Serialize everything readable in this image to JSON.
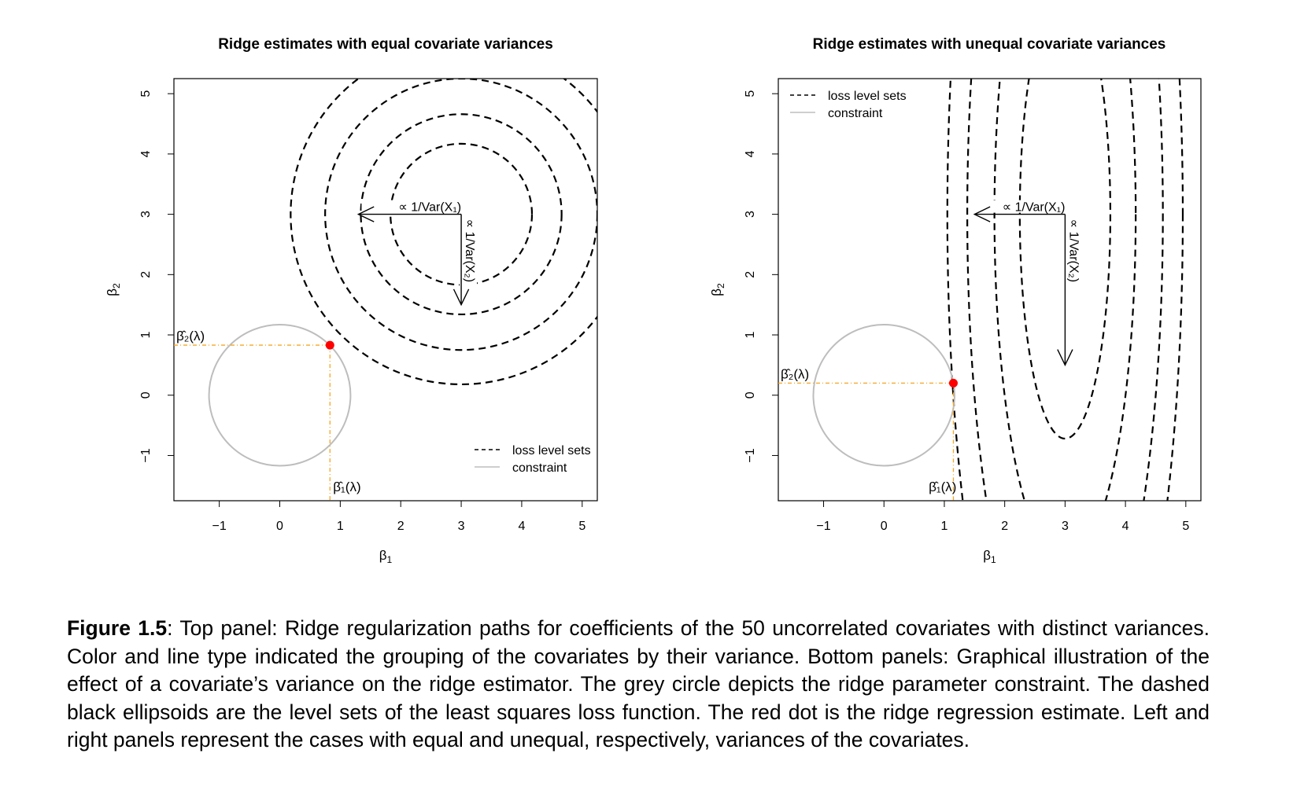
{
  "chart_data": [
    {
      "type": "scatter",
      "title": "Ridge estimates with equal covariate variances",
      "xlabel": "β1",
      "ylabel": "β2",
      "xlim": [
        -1.75,
        5.25
      ],
      "ylim": [
        -1.75,
        5.25
      ],
      "x_ticks": [
        "−1",
        "0",
        "1",
        "2",
        "3",
        "4",
        "5"
      ],
      "y_ticks": [
        "−1",
        "0",
        "1",
        "2",
        "3",
        "4",
        "5"
      ],
      "grid": false,
      "legend": {
        "position": "bottom-right",
        "entries": [
          "loss level sets",
          "constraint"
        ]
      },
      "loss_center": [
        3,
        3
      ],
      "loss_semi_axes": [
        [
          1.17,
          1.17
        ],
        [
          1.66,
          1.66
        ],
        [
          2.25,
          2.25
        ],
        [
          2.82,
          2.82
        ]
      ],
      "constraint_center": [
        0,
        0
      ],
      "constraint_radius": 1.17,
      "ridge_estimate": {
        "x": 0.83,
        "y": 0.83
      },
      "arrows": [
        {
          "from": [
            3,
            3
          ],
          "to": [
            1.3,
            3
          ],
          "label": "∝ 1/Var(X₁)"
        },
        {
          "from": [
            3,
            3
          ],
          "to": [
            3,
            1.5
          ],
          "label": "∝ 1/Var(X₂)"
        }
      ],
      "annotations": {
        "beta1_hat": "β̂₁(λ)",
        "beta2_hat": "β̂₂(λ)"
      }
    },
    {
      "type": "scatter",
      "title": "Ridge estimates with unequal covariate variances",
      "xlabel": "β1",
      "ylabel": "β2",
      "xlim": [
        -1.75,
        5.25
      ],
      "ylim": [
        -1.75,
        5.25
      ],
      "x_ticks": [
        "−1",
        "0",
        "1",
        "2",
        "3",
        "4",
        "5"
      ],
      "y_ticks": [
        "−1",
        "0",
        "1",
        "2",
        "3",
        "4",
        "5"
      ],
      "grid": false,
      "legend": {
        "position": "top-left",
        "entries": [
          "loss level sets",
          "constraint"
        ]
      },
      "loss_center": [
        3,
        3
      ],
      "loss_semi_axes": [
        [
          0.75,
          3.72
        ],
        [
          1.17,
          5.8
        ],
        [
          1.62,
          8.0
        ],
        [
          1.95,
          9.6
        ]
      ],
      "constraint_center": [
        0,
        0
      ],
      "constraint_radius": 1.17,
      "ridge_estimate": {
        "x": 1.15,
        "y": 0.2
      },
      "arrows": [
        {
          "from": [
            3,
            3
          ],
          "to": [
            1.5,
            3
          ],
          "label": "∝ 1/Var(X₁)"
        },
        {
          "from": [
            3,
            3
          ],
          "to": [
            3,
            0.5
          ],
          "label": "∝ 1/Var(X₂)"
        }
      ],
      "annotations": {
        "beta1_hat": "β̂₁(λ)",
        "beta2_hat": "β̂₂(λ)"
      }
    }
  ],
  "caption": {
    "label": "Figure 1.5",
    "text": ": Top panel: Ridge regularization paths for coefficients of the 50 uncorrelated covariates with distinct variances. Color and line type indicated the grouping of the covariates by their variance. Bottom panels: Graphical illustration of the effect of a covariate’s variance on the ridge estimator. The grey circle depicts the ridge parameter constraint. The dashed black ellipsoids are the level sets of the least squares loss function. The red dot is the ridge regression estimate. Left and right panels represent the cases with equal and unequal, respectively, variances of the covariates."
  },
  "colors": {
    "loss": "#000000",
    "constraint": "#bdbdbd",
    "estimate": "#ff0000",
    "guide": "#f5a623",
    "axis": "#000000"
  }
}
